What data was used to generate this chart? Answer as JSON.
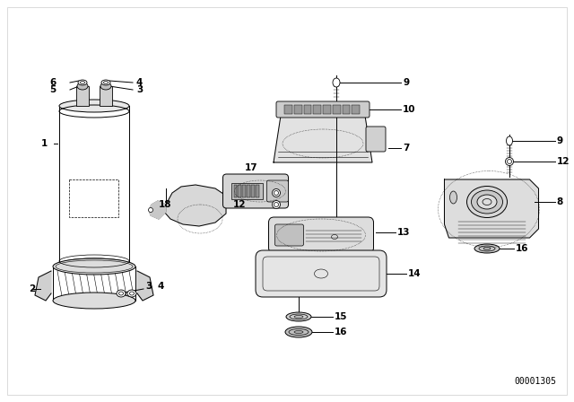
{
  "bg_color": "#ffffff",
  "line_color": "#000000",
  "diagram_code": "00001305",
  "font_size_label": 8,
  "font_size_code": 7,
  "border_color": "#cccccc"
}
